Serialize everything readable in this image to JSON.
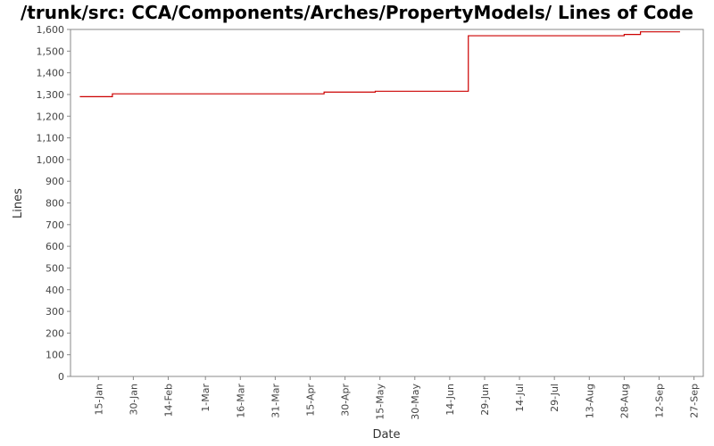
{
  "chart_data": {
    "type": "line",
    "title": "/trunk/src: CCA/Components/Arches/PropertyModels/ Lines of Code",
    "xlabel": "Date",
    "ylabel": "Lines",
    "ylim": [
      0,
      1600
    ],
    "yticks": [
      0,
      100,
      200,
      300,
      400,
      500,
      600,
      700,
      800,
      900,
      1000,
      1100,
      1200,
      1300,
      1400,
      1500,
      1600
    ],
    "ytick_labels": [
      "0",
      "100",
      "200",
      "300",
      "400",
      "500",
      "600",
      "700",
      "800",
      "900",
      "1,000",
      "1,100",
      "1,200",
      "1,300",
      "1,400",
      "1,500",
      "1,600"
    ],
    "xlim": [
      "01-03",
      "10-01"
    ],
    "xticks": [
      "01-15",
      "01-30",
      "02-14",
      "03-01",
      "03-16",
      "03-31",
      "04-15",
      "04-30",
      "05-15",
      "05-30",
      "06-14",
      "06-29",
      "07-14",
      "07-29",
      "08-13",
      "08-28",
      "09-12",
      "09-27"
    ],
    "xtick_labels": [
      "15-Jan",
      "30-Jan",
      "14-Feb",
      "1-Mar",
      "16-Mar",
      "31-Mar",
      "15-Apr",
      "30-Apr",
      "15-May",
      "30-May",
      "14-Jun",
      "29-Jun",
      "14-Jul",
      "29-Jul",
      "13-Aug",
      "28-Aug",
      "12-Sep",
      "27-Sep"
    ],
    "grid": false,
    "line_color": "#cc0000",
    "series": [
      {
        "step": true,
        "x": [
          "01-07",
          "01-21",
          "04-21",
          "05-13",
          "06-22",
          "08-28",
          "09-04",
          "09-21"
        ],
        "y": [
          1290,
          1303,
          1311,
          1315,
          1571,
          1577,
          1589,
          1589
        ]
      }
    ]
  }
}
